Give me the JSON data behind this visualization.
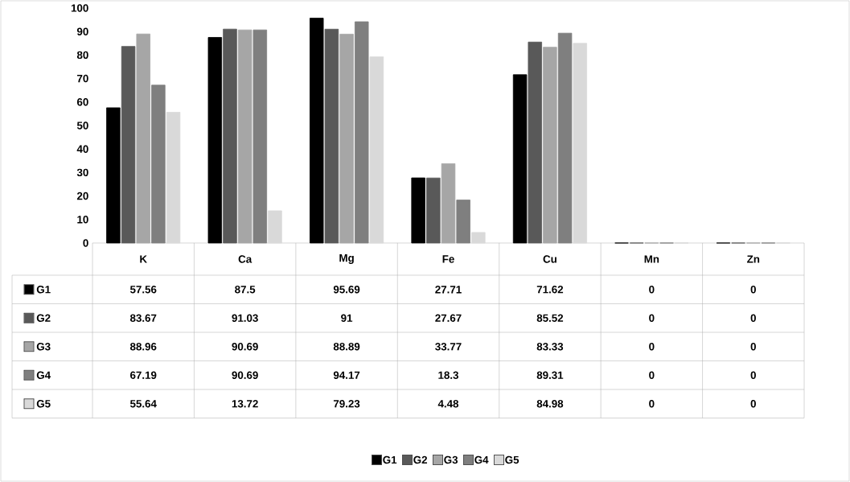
{
  "chart_data": {
    "type": "bar",
    "categories": [
      "K",
      "Ca",
      "Mg",
      "Fe",
      "Cu",
      "Mn",
      "Zn"
    ],
    "series": [
      {
        "name": "G1",
        "color": "#000000",
        "values": [
          57.56,
          87.5,
          95.69,
          27.71,
          71.62,
          0,
          0
        ]
      },
      {
        "name": "G2",
        "color": "#595959",
        "values": [
          83.67,
          91.03,
          91,
          27.67,
          85.52,
          0,
          0
        ]
      },
      {
        "name": "G3",
        "color": "#a6a6a6",
        "values": [
          88.96,
          90.69,
          88.89,
          33.77,
          83.33,
          0,
          0
        ]
      },
      {
        "name": "G4",
        "color": "#7f7f7f",
        "values": [
          67.19,
          90.69,
          94.17,
          18.3,
          89.31,
          0,
          0
        ]
      },
      {
        "name": "G5",
        "color": "#d9d9d9",
        "values": [
          55.64,
          13.72,
          79.23,
          4.48,
          84.98,
          0,
          0
        ]
      }
    ],
    "ylim": [
      0,
      100
    ],
    "yticks": [
      0,
      10,
      20,
      30,
      40,
      50,
      60,
      70,
      80,
      90,
      100
    ],
    "grid": false,
    "legend": "bottom",
    "data_labels": true
  }
}
